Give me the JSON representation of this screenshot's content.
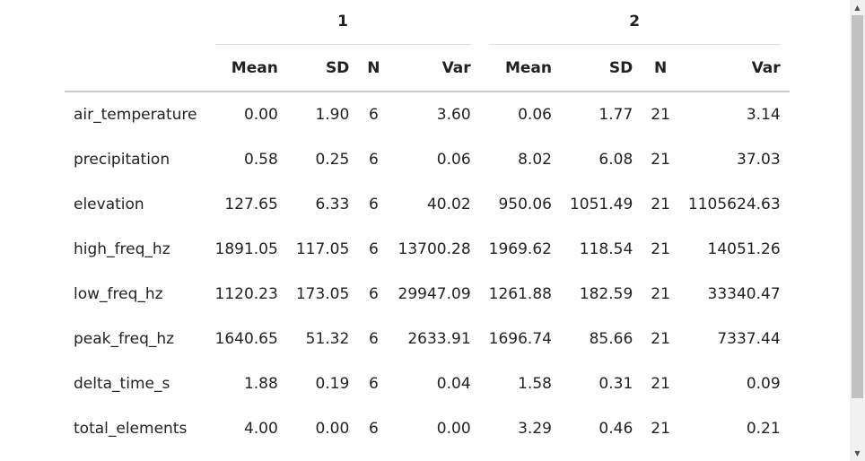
{
  "table": {
    "groups": [
      "1",
      "2"
    ],
    "headers": [
      "",
      "Mean",
      "SD",
      "N",
      "Var",
      "Mean",
      "SD",
      "N",
      "Var"
    ],
    "rows": [
      {
        "label": "air_temperature",
        "values": [
          "0.00",
          "1.90",
          "6",
          "3.60",
          "0.06",
          "1.77",
          "21",
          "3.14"
        ]
      },
      {
        "label": "precipitation",
        "values": [
          "0.58",
          "0.25",
          "6",
          "0.06",
          "8.02",
          "6.08",
          "21",
          "37.03"
        ]
      },
      {
        "label": "elevation",
        "values": [
          "127.65",
          "6.33",
          "6",
          "40.02",
          "950.06",
          "1051.49",
          "21",
          "1105624.63"
        ]
      },
      {
        "label": "high_freq_hz",
        "values": [
          "1891.05",
          "117.05",
          "6",
          "13700.28",
          "1969.62",
          "118.54",
          "21",
          "14051.26"
        ]
      },
      {
        "label": "low_freq_hz",
        "values": [
          "1120.23",
          "173.05",
          "6",
          "29947.09",
          "1261.88",
          "182.59",
          "21",
          "33340.47"
        ]
      },
      {
        "label": "peak_freq_hz",
        "values": [
          "1640.65",
          "51.32",
          "6",
          "2633.91",
          "1696.74",
          "85.66",
          "21",
          "7337.44"
        ]
      },
      {
        "label": "delta_time_s",
        "values": [
          "1.88",
          "0.19",
          "6",
          "0.04",
          "1.58",
          "0.31",
          "21",
          "0.09"
        ]
      },
      {
        "label": "total_elements",
        "values": [
          "4.00",
          "0.00",
          "6",
          "0.00",
          "3.29",
          "0.46",
          "21",
          "0.21"
        ]
      }
    ]
  },
  "scrollbar": {
    "up_icon": "chevron-up-icon",
    "down_icon": "chevron-down-icon"
  }
}
